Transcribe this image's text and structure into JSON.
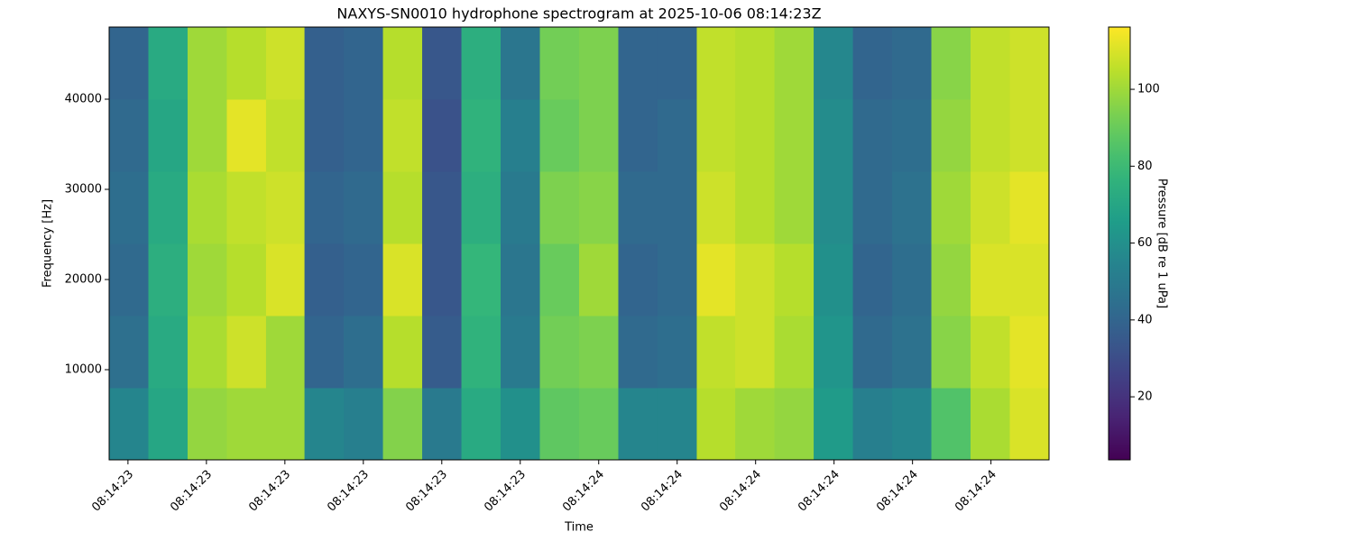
{
  "chart_data": {
    "type": "heatmap",
    "title": "NAXYS-SN0010 hydrophone spectrogram at 2025-10-06 08:14:23Z",
    "x_label": "Time",
    "y_label": "Frequency [Hz]",
    "colorbar_label": "Pressure [dB re 1 uPa]",
    "colormap": "viridis",
    "xlim": [
      23.376,
      24.574
    ],
    "xticks": [
      {
        "value": 23.4,
        "label": "08:14:23"
      },
      {
        "value": 23.5,
        "label": "08:14:23"
      },
      {
        "value": 23.6,
        "label": "08:14:23"
      },
      {
        "value": 23.7,
        "label": "08:14:23"
      },
      {
        "value": 23.8,
        "label": "08:14:23"
      },
      {
        "value": 23.9,
        "label": "08:14:23"
      },
      {
        "value": 24.0,
        "label": "08:14:24"
      },
      {
        "value": 24.1,
        "label": "08:14:24"
      },
      {
        "value": 24.2,
        "label": "08:14:24"
      },
      {
        "value": 24.3,
        "label": "08:14:24"
      },
      {
        "value": 24.4,
        "label": "08:14:24"
      },
      {
        "value": 24.5,
        "label": "08:14:24"
      }
    ],
    "ylim": [
      0,
      48000
    ],
    "yticks": [
      10000,
      20000,
      30000,
      40000
    ],
    "clim": [
      3.6,
      116.2
    ],
    "cticks": [
      20,
      40,
      60,
      80,
      100
    ],
    "x_edges": [
      23.376,
      23.426,
      23.476,
      23.526,
      23.576,
      23.625,
      23.675,
      23.725,
      23.775,
      23.825,
      23.875,
      23.925,
      23.975,
      24.025,
      24.075,
      24.125,
      24.174,
      24.224,
      24.274,
      24.324,
      24.374,
      24.424,
      24.474,
      24.524,
      24.574
    ],
    "y_edges": [
      0,
      8000,
      16000,
      24000,
      32000,
      40000,
      48000
    ],
    "z": [
      [
        55,
        70,
        98,
        100,
        100,
        55,
        52,
        95,
        50,
        72,
        60,
        88,
        90,
        55,
        55,
        104,
        100,
        98,
        65,
        52,
        55,
        85,
        102,
        110
      ],
      [
        45,
        72,
        102,
        108,
        100,
        40,
        44,
        104,
        36,
        76,
        50,
        92,
        94,
        42,
        44,
        106,
        108,
        102,
        62,
        42,
        46,
        96,
        106,
        112
      ],
      [
        42,
        74,
        100,
        104,
        110,
        38,
        40,
        110,
        34,
        78,
        48,
        90,
        100,
        40,
        42,
        112,
        108,
        104,
        60,
        40,
        44,
        98,
        110,
        110
      ],
      [
        44,
        72,
        102,
        106,
        108,
        40,
        42,
        104,
        34,
        74,
        50,
        94,
        96,
        42,
        42,
        108,
        104,
        100,
        58,
        42,
        46,
        100,
        108,
        112
      ],
      [
        42,
        70,
        100,
        112,
        106,
        38,
        40,
        106,
        32,
        76,
        52,
        90,
        94,
        40,
        42,
        106,
        104,
        100,
        58,
        42,
        44,
        98,
        106,
        108
      ],
      [
        40,
        72,
        100,
        104,
        108,
        38,
        40,
        104,
        34,
        74,
        48,
        92,
        94,
        40,
        40,
        106,
        104,
        100,
        56,
        40,
        42,
        96,
        106,
        108
      ]
    ]
  }
}
